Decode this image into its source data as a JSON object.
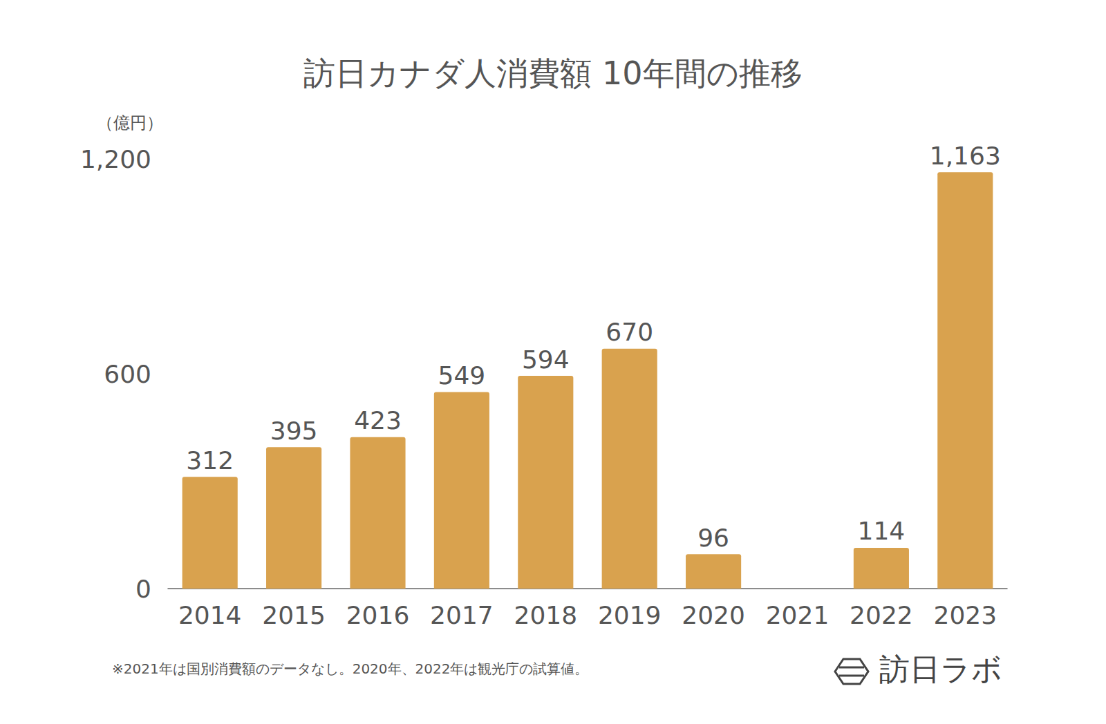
{
  "chart_data": {
    "type": "bar",
    "title": "訪日カナダ人消費額 10年間の推移",
    "ylabel": "（億円）",
    "categories": [
      "2014",
      "2015",
      "2016",
      "2017",
      "2018",
      "2019",
      "2020",
      "2021",
      "2022",
      "2023"
    ],
    "values": [
      312,
      395,
      423,
      549,
      594,
      670,
      96,
      null,
      114,
      1163
    ],
    "value_labels": [
      "312",
      "395",
      "423",
      "549",
      "594",
      "670",
      "96",
      null,
      "114",
      "1,163"
    ],
    "color": "#d9a24e",
    "ylim": [
      0,
      1200
    ],
    "yticks": [
      0,
      600,
      {
        "value": 1200,
        "label": "1,200"
      }
    ],
    "grid": false,
    "data_labels": true,
    "annotations": [
      "※2021年は国別消費額のデータなし。2020年、2022年は観光庁の試算値。",
      "訪日ラボ"
    ]
  }
}
